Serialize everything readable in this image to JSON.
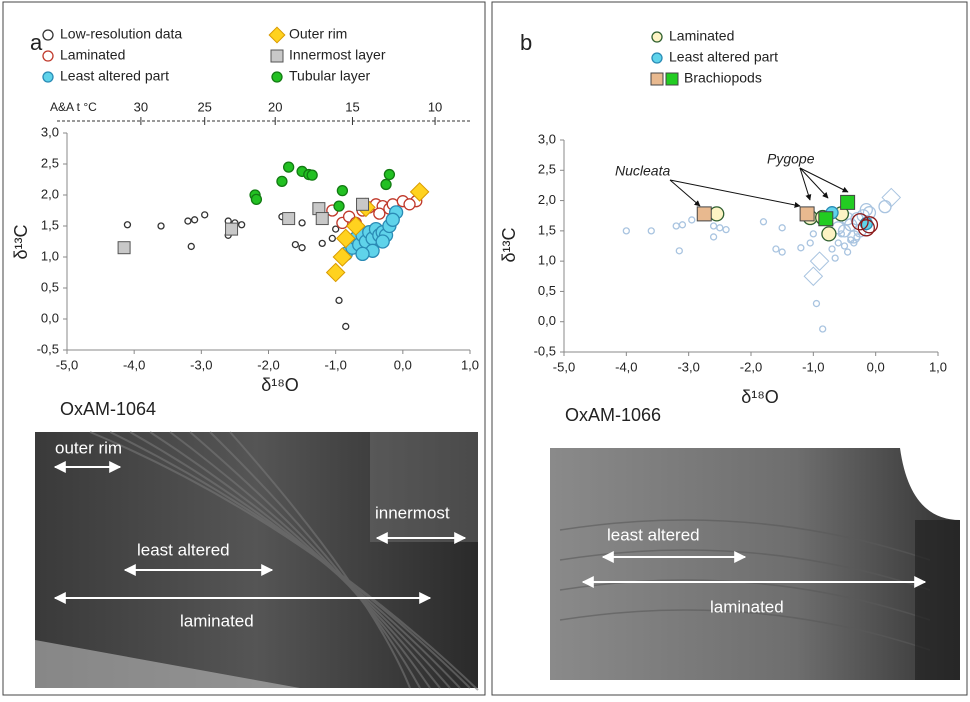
{
  "panels": [
    {
      "label": "a",
      "sample": "OxAM-1064",
      "photo_labels": [
        "outer rim",
        "least altered",
        "innermost",
        "laminated"
      ]
    },
    {
      "label": "b",
      "sample": "OxAM-1066",
      "photo_labels": [
        "least altered",
        "laminated"
      ]
    }
  ],
  "chart_data": [
    {
      "type": "scatter",
      "xlabel": "δ¹⁸O",
      "ylabel": "δ¹³C",
      "xlim": [
        -5,
        1
      ],
      "ylim": [
        -0.5,
        3
      ],
      "xticks": [
        {
          "value": -5,
          "label": "-5,0"
        },
        {
          "value": -4,
          "label": "-4,0"
        },
        {
          "value": -3,
          "label": "-3,0"
        },
        {
          "value": -2,
          "label": "-2,0"
        },
        {
          "value": -1,
          "label": "-1,0"
        },
        {
          "value": 0,
          "label": "0,0"
        },
        {
          "value": 1,
          "label": "1,0"
        }
      ],
      "yticks": [
        {
          "value": -0.5,
          "label": "-0,5"
        },
        {
          "value": 0,
          "label": "0,0"
        },
        {
          "value": 0.5,
          "label": "0,5"
        },
        {
          "value": 1,
          "label": "1,0"
        },
        {
          "value": 1.5,
          "label": "1,5"
        },
        {
          "value": 2,
          "label": "2,0"
        },
        {
          "value": 2.5,
          "label": "2,5"
        },
        {
          "value": 3,
          "label": "3,0"
        }
      ],
      "x2label": "A&A  t °C",
      "x2ticks": [
        {
          "value": -3.9,
          "label": "30"
        },
        {
          "value": -2.95,
          "label": "25"
        },
        {
          "value": -1.9,
          "label": "20"
        },
        {
          "value": -0.75,
          "label": "15"
        },
        {
          "value": 0.48,
          "label": "10"
        }
      ],
      "series": [
        {
          "name": "Low-resolution data",
          "marker": "circle",
          "color": "#333333",
          "fill": "#ffffff",
          "size": 3,
          "x": [
            -4.1,
            -3.6,
            -3.2,
            -3.1,
            -2.95,
            -3.15,
            -2.6,
            -2.5,
            -2.4,
            -1.6,
            -1.5,
            -1.8,
            -1.2,
            -1.0,
            -0.95,
            -0.85,
            -1.05,
            -1.5,
            -2.6
          ],
          "values": [
            1.52,
            1.5,
            1.58,
            1.6,
            1.68,
            1.17,
            1.58,
            1.55,
            1.52,
            1.2,
            1.15,
            1.65,
            1.22,
            1.45,
            0.3,
            -0.12,
            1.3,
            1.55,
            1.35
          ]
        },
        {
          "name": "Laminated",
          "marker": "circle",
          "color": "#c0392b",
          "fill": "#ffffff",
          "size": 5.5,
          "x": [
            -0.9,
            -0.8,
            -0.6,
            -0.5,
            -0.4,
            -0.3,
            -0.2,
            -0.15,
            0.0,
            0.2,
            -0.7,
            -1.05,
            -0.35,
            0.1
          ],
          "values": [
            1.55,
            1.65,
            1.75,
            1.8,
            1.85,
            1.82,
            1.78,
            1.85,
            1.9,
            1.9,
            1.55,
            1.75,
            1.7,
            1.85
          ]
        },
        {
          "name": "Least altered part",
          "marker": "circle",
          "color": "#2a8bb5",
          "fill": "#5fd3ea",
          "size": 6.5,
          "x": [
            -0.85,
            -0.8,
            -0.75,
            -0.7,
            -0.65,
            -0.6,
            -0.55,
            -0.5,
            -0.45,
            -0.4,
            -0.35,
            -0.3,
            -0.25,
            -0.2,
            -0.1,
            -0.45,
            -0.6,
            -0.3,
            -0.15
          ],
          "values": [
            1.05,
            1.25,
            1.15,
            1.3,
            1.2,
            1.35,
            1.25,
            1.4,
            1.3,
            1.45,
            1.35,
            1.4,
            1.35,
            1.5,
            1.72,
            1.1,
            1.05,
            1.25,
            1.6
          ]
        },
        {
          "name": "Outer rim",
          "marker": "diamond",
          "color": "#d99a00",
          "fill": "#ffd21f",
          "size": 7,
          "x": [
            0.25,
            -1.0,
            -0.9,
            -0.85,
            -0.7,
            -0.55
          ],
          "values": [
            2.05,
            0.75,
            1.0,
            1.3,
            1.5,
            1.8
          ]
        },
        {
          "name": "Innermost layer",
          "marker": "square",
          "color": "#555555",
          "fill": "#c8c8c8",
          "size": 6,
          "x": [
            -4.15,
            -2.55,
            -1.7,
            -1.25,
            -1.2,
            -0.6
          ],
          "values": [
            1.15,
            1.45,
            1.62,
            1.78,
            1.62,
            1.85
          ]
        },
        {
          "name": "Tubular layer",
          "marker": "circle",
          "color": "#127a12",
          "fill": "#22c022",
          "size": 5,
          "x": [
            -2.2,
            -2.18,
            -1.8,
            -1.7,
            -1.5,
            -1.4,
            -1.35,
            -0.9,
            -0.95,
            -0.2,
            -0.25
          ],
          "values": [
            2.0,
            1.93,
            2.22,
            2.45,
            2.38,
            2.33,
            2.32,
            2.07,
            1.82,
            2.33,
            2.17
          ]
        }
      ]
    },
    {
      "type": "scatter",
      "xlabel": "δ¹⁸O",
      "ylabel": "δ¹³C",
      "xlim": [
        -5,
        1
      ],
      "ylim": [
        -0.5,
        3
      ],
      "xticks": [
        {
          "value": -5,
          "label": "-5,0"
        },
        {
          "value": -4,
          "label": "-4,0"
        },
        {
          "value": -3,
          "label": "-3,0"
        },
        {
          "value": -2,
          "label": "-2,0"
        },
        {
          "value": -1,
          "label": "-1,0"
        },
        {
          "value": 0,
          "label": "0,0"
        },
        {
          "value": 1,
          "label": "1,0"
        }
      ],
      "yticks": [
        {
          "value": -0.5,
          "label": "-0,5"
        },
        {
          "value": 0,
          "label": "0,0"
        },
        {
          "value": 0.5,
          "label": "0,5"
        },
        {
          "value": 1,
          "label": "1,0"
        },
        {
          "value": 1.5,
          "label": "1,5"
        },
        {
          "value": 2,
          "label": "2,0"
        },
        {
          "value": 2.5,
          "label": "2,5"
        },
        {
          "value": 3,
          "label": "3,0"
        }
      ],
      "annotations": [
        "Nucleata",
        "Pygope"
      ],
      "series": [
        {
          "marker": "circle",
          "color": "#a9c4e0",
          "fill": "none",
          "size": 3,
          "x": [
            -4.0,
            -3.6,
            -3.2,
            -3.1,
            -2.95,
            -3.15,
            -2.6,
            -2.5,
            -2.4,
            -1.6,
            -1.5,
            -1.8,
            -1.2,
            -1.0,
            -0.95,
            -0.85,
            -1.05,
            -1.5,
            -2.6,
            -0.6,
            -0.5,
            -0.4,
            -0.3,
            -0.7,
            -0.55,
            -0.45,
            -0.35,
            -0.65
          ],
          "values": [
            1.5,
            1.5,
            1.58,
            1.6,
            1.68,
            1.17,
            1.58,
            1.55,
            1.52,
            1.2,
            1.15,
            1.65,
            1.22,
            1.45,
            0.3,
            -0.12,
            1.3,
            1.55,
            1.4,
            1.3,
            1.25,
            1.35,
            1.4,
            1.2,
            1.45,
            1.15,
            1.3,
            1.05
          ]
        },
        {
          "marker": "circle",
          "color": "#a9c4e0",
          "fill": "none",
          "size": 6,
          "x": [
            -0.5,
            -0.4,
            -0.3,
            -0.2,
            -0.1,
            -0.35,
            -0.25,
            -0.6,
            -0.45,
            -0.15,
            0.15
          ],
          "values": [
            1.5,
            1.6,
            1.7,
            1.75,
            1.8,
            1.4,
            1.5,
            1.55,
            1.7,
            1.85,
            1.9
          ]
        },
        {
          "marker": "diamond",
          "color": "#a9c4e0",
          "fill": "none",
          "size": 7,
          "x": [
            0.25,
            -1.0,
            -0.9
          ],
          "values": [
            2.05,
            0.75,
            1.0
          ]
        },
        {
          "name": "Laminated",
          "marker": "circle",
          "color": "#2f5f2f",
          "fill": "#fdf3c4",
          "size": 7,
          "x": [
            -2.55,
            -1.05,
            -0.85,
            -0.75,
            -0.55
          ],
          "values": [
            1.78,
            1.72,
            1.72,
            1.45,
            1.78
          ]
        },
        {
          "name": "Least altered part",
          "marker": "circle",
          "color": "#2a8bb5",
          "fill": "#5fd3ea",
          "size": 6,
          "x": [
            -0.15,
            -0.7
          ],
          "values": [
            1.62,
            1.8
          ]
        },
        {
          "marker": "circle",
          "color": "#8b1a1a",
          "fill": "none",
          "size": 8,
          "x": [
            -0.25,
            -0.15,
            -0.1
          ],
          "values": [
            1.65,
            1.55,
            1.6
          ]
        },
        {
          "name": "Brachiopods",
          "marker": "square",
          "color": "#444444",
          "colors": [
            "#e8b98f",
            "#e8b98f",
            "#22cc22",
            "#22cc22"
          ],
          "size": 7,
          "x": [
            -2.75,
            -1.1,
            -0.8,
            -0.45
          ],
          "values": [
            1.78,
            1.78,
            1.7,
            1.97
          ]
        }
      ]
    }
  ]
}
